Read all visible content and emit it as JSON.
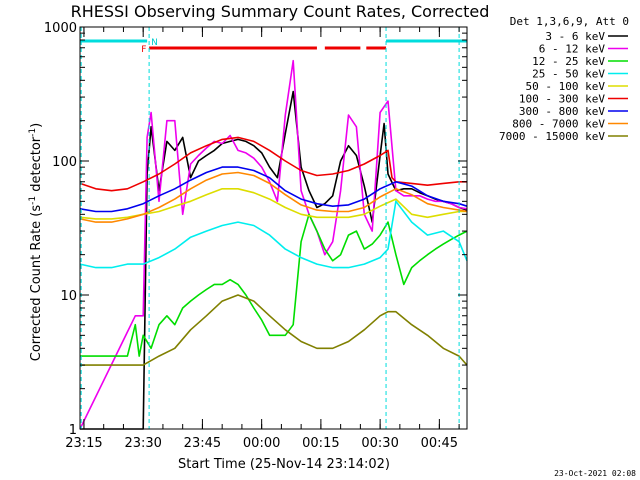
{
  "chart_data": {
    "type": "line",
    "title": "RHESSI Observing Summary Count Rates, Corrected",
    "xlabel": "Start Time (25-Nov-14 23:14:02)",
    "ylabel": "Corrected Count Rate (s⁻¹ detector⁻¹)",
    "yscale": "log",
    "ylim": [
      1,
      1000
    ],
    "xlim_minutes": [
      0,
      98
    ],
    "x_ticks": [
      {
        "m": 1,
        "label": "23:15"
      },
      {
        "m": 16,
        "label": "23:30"
      },
      {
        "m": 31,
        "label": "23:45"
      },
      {
        "m": 46,
        "label": "00:00"
      },
      {
        "m": 61,
        "label": "00:15"
      },
      {
        "m": 76,
        "label": "00:30"
      },
      {
        "m": 91,
        "label": "00:45"
      }
    ],
    "y_ticks": [
      {
        "v": 1,
        "label": "1"
      },
      {
        "v": 10,
        "label": "10"
      },
      {
        "v": 100,
        "label": "100"
      },
      {
        "v": 1000,
        "label": "1000"
      }
    ],
    "legend_header": "Det 1,3,6,9, Att 0",
    "legend_position": "right",
    "flags": {
      "N": "N",
      "F": "F"
    },
    "footer": "23-Oct-2021 02:08",
    "series": [
      {
        "name": "3 - 6 keV",
        "color": "#000000",
        "x": [
          0,
          16,
          17,
          18,
          20,
          22,
          24,
          26,
          28,
          30,
          32,
          34,
          36,
          38,
          40,
          42,
          44,
          46,
          48,
          50,
          52,
          54,
          56,
          58,
          60,
          62,
          64,
          66,
          68,
          70,
          72,
          74,
          76,
          77,
          78,
          80,
          82,
          84,
          86,
          88,
          90,
          92,
          94,
          96,
          98
        ],
        "y": [
          1,
          1,
          80,
          180,
          60,
          140,
          120,
          150,
          75,
          100,
          110,
          120,
          135,
          140,
          145,
          140,
          130,
          115,
          90,
          75,
          160,
          330,
          90,
          60,
          45,
          48,
          55,
          100,
          130,
          110,
          65,
          35,
          110,
          190,
          80,
          60,
          62,
          62,
          58,
          55,
          52,
          50,
          48,
          45,
          43
        ]
      },
      {
        "name": "6 - 12 keV",
        "color": "#ee00ee",
        "x": [
          0,
          14,
          15,
          16,
          17,
          18,
          20,
          22,
          24,
          26,
          28,
          30,
          32,
          34,
          36,
          38,
          40,
          42,
          44,
          46,
          48,
          50,
          52,
          54,
          56,
          58,
          60,
          62,
          64,
          66,
          68,
          70,
          72,
          74,
          76,
          78,
          80,
          82,
          84,
          86,
          88,
          90,
          92,
          94,
          96,
          98
        ],
        "y": [
          1,
          7,
          7,
          7,
          150,
          230,
          50,
          200,
          200,
          40,
          95,
          110,
          125,
          140,
          135,
          155,
          120,
          115,
          105,
          90,
          70,
          50,
          220,
          560,
          60,
          40,
          30,
          20,
          25,
          60,
          220,
          180,
          40,
          30,
          230,
          280,
          60,
          55,
          55,
          55,
          52,
          50,
          50,
          48,
          45,
          44
        ]
      },
      {
        "name": "12 - 25 keV",
        "color": "#00dd00",
        "x": [
          0,
          4,
          8,
          12,
          14,
          15,
          16,
          18,
          20,
          22,
          24,
          26,
          28,
          30,
          32,
          34,
          36,
          38,
          40,
          42,
          44,
          46,
          48,
          50,
          52,
          54,
          56,
          58,
          60,
          62,
          64,
          66,
          68,
          70,
          72,
          74,
          76,
          78,
          80,
          82,
          84,
          86,
          88,
          90,
          92,
          94,
          96,
          98
        ],
        "y": [
          3.5,
          3.5,
          3.5,
          3.5,
          6,
          3.5,
          5,
          4,
          6,
          7,
          6,
          8,
          9,
          10,
          11,
          12,
          12,
          13,
          12,
          10,
          8,
          6.5,
          5,
          5,
          5,
          6,
          25,
          40,
          30,
          22,
          18,
          20,
          28,
          30,
          22,
          24,
          28,
          35,
          20,
          12,
          16,
          18,
          20,
          22,
          24,
          26,
          28,
          30
        ]
      },
      {
        "name": "25 - 50 keV",
        "color": "#00eeee",
        "x": [
          0,
          4,
          8,
          12,
          16,
          20,
          24,
          28,
          32,
          36,
          40,
          44,
          48,
          52,
          56,
          60,
          64,
          68,
          72,
          76,
          78,
          80,
          84,
          88,
          92,
          96,
          98
        ],
        "y": [
          17,
          16,
          16,
          17,
          17,
          19,
          22,
          27,
          30,
          33,
          35,
          33,
          28,
          22,
          19,
          17,
          16,
          16,
          17,
          19,
          22,
          50,
          35,
          28,
          30,
          25,
          18
        ]
      },
      {
        "name": "50 - 100 keV",
        "color": "#dddd00",
        "x": [
          0,
          4,
          8,
          12,
          16,
          20,
          24,
          28,
          32,
          36,
          40,
          44,
          48,
          52,
          56,
          60,
          64,
          68,
          72,
          76,
          80,
          84,
          88,
          92,
          96,
          98
        ],
        "y": [
          38,
          37,
          37,
          38,
          40,
          42,
          46,
          50,
          56,
          62,
          62,
          58,
          52,
          45,
          40,
          38,
          38,
          38,
          40,
          46,
          52,
          40,
          38,
          40,
          42,
          42
        ]
      },
      {
        "name": "100 - 300 keV",
        "color": "#ee0000",
        "x": [
          0,
          4,
          8,
          12,
          16,
          20,
          24,
          28,
          32,
          36,
          40,
          44,
          48,
          52,
          56,
          60,
          64,
          68,
          72,
          76,
          78,
          79,
          80,
          84,
          88,
          92,
          96,
          98
        ],
        "y": [
          68,
          62,
          60,
          62,
          70,
          80,
          95,
          115,
          130,
          145,
          150,
          140,
          120,
          100,
          85,
          78,
          80,
          85,
          95,
          110,
          120,
          75,
          70,
          68,
          66,
          68,
          70,
          70
        ]
      },
      {
        "name": "300 - 800 keV",
        "color": "#0000ee",
        "x": [
          0,
          4,
          8,
          12,
          16,
          20,
          24,
          28,
          32,
          36,
          40,
          44,
          48,
          52,
          56,
          60,
          64,
          68,
          72,
          76,
          80,
          84,
          88,
          92,
          96,
          98
        ],
        "y": [
          44,
          42,
          42,
          44,
          48,
          55,
          62,
          72,
          82,
          90,
          90,
          85,
          75,
          60,
          52,
          48,
          46,
          47,
          52,
          62,
          70,
          65,
          55,
          50,
          48,
          46
        ]
      },
      {
        "name": "800 - 7000 keV",
        "color": "#ff8800",
        "x": [
          0,
          4,
          8,
          12,
          16,
          20,
          24,
          28,
          32,
          36,
          40,
          44,
          48,
          52,
          56,
          60,
          64,
          68,
          72,
          76,
          80,
          84,
          88,
          92,
          96,
          98
        ],
        "y": [
          37,
          35,
          35,
          37,
          40,
          45,
          52,
          62,
          72,
          80,
          82,
          78,
          68,
          56,
          47,
          43,
          42,
          42,
          45,
          54,
          62,
          56,
          48,
          45,
          43,
          42
        ]
      },
      {
        "name": "7000 - 15000 keV",
        "color": "#808000",
        "x": [
          0,
          4,
          8,
          12,
          16,
          20,
          24,
          28,
          32,
          36,
          40,
          44,
          48,
          52,
          56,
          60,
          64,
          68,
          72,
          76,
          78,
          80,
          84,
          88,
          92,
          96,
          98
        ],
        "y": [
          3,
          3,
          3,
          3,
          3,
          3.5,
          4,
          5.5,
          7,
          9,
          10,
          9,
          7,
          5.5,
          4.5,
          4,
          4,
          4.5,
          5.5,
          7,
          7.5,
          7.5,
          6,
          5,
          4,
          3.5,
          3
        ]
      }
    ]
  }
}
